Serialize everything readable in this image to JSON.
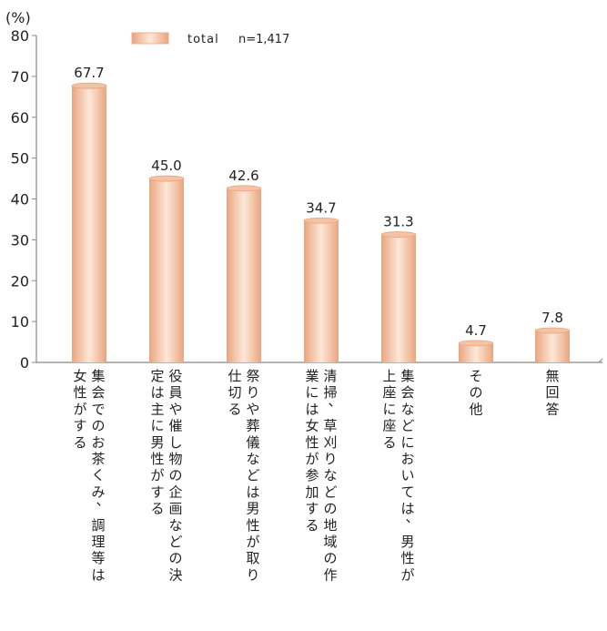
{
  "chart_data": {
    "type": "bar",
    "unit_label": "(%)",
    "legend": {
      "label": "total",
      "note": "n=1,417",
      "position": "top"
    },
    "ylim": [
      0,
      80
    ],
    "yticks": [
      0,
      10,
      20,
      30,
      40,
      50,
      60,
      70,
      80
    ],
    "categories": [
      [
        "集会でのお茶くみ、調理等は",
        "女性がする"
      ],
      [
        "役員や催し物の企画などの決",
        "定は主に男性がする"
      ],
      [
        "祭りや葬儀などは男性が取り",
        "仕切る"
      ],
      [
        "清掃、草刈りなどの地域の作",
        "業には女性が参加する"
      ],
      [
        "集会などにおいては、男性が",
        "上座に座る"
      ],
      [
        "その他"
      ],
      [
        "無回答"
      ]
    ],
    "series": [
      {
        "name": "total",
        "values": [
          67.7,
          45.0,
          42.6,
          34.7,
          31.3,
          4.7,
          7.8
        ]
      }
    ],
    "value_labels": [
      "67.7",
      "45.0",
      "42.6",
      "34.7",
      "31.3",
      "4.7",
      "7.8"
    ],
    "grid": false,
    "colors": {
      "bar_edge": "#e9a57f",
      "bar_center": "#fde8d8",
      "axis": "#888888"
    }
  }
}
